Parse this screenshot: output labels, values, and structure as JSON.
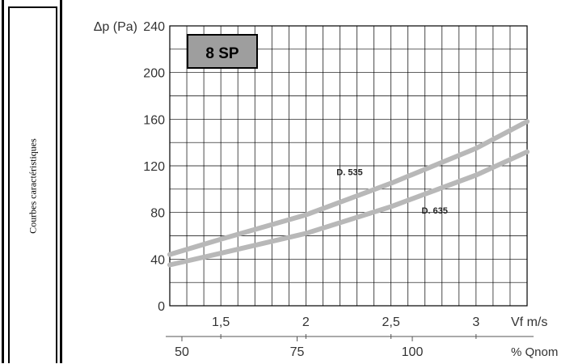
{
  "side_label": "Courbes caractéristiques",
  "chart_data": {
    "type": "line",
    "badge": "8 SP",
    "ylabel": "Δp (Pa)",
    "xlabel": "Vf m/s",
    "x2label": "% Qnom",
    "ylim": [
      0,
      240
    ],
    "xlim": [
      1.2,
      3.3
    ],
    "yticks": [
      0,
      40,
      80,
      120,
      160,
      200,
      240
    ],
    "xticks": [
      1.5,
      2,
      2.5,
      3
    ],
    "xtick_labels": [
      "1,5",
      "2",
      "2,5",
      "3"
    ],
    "x2ticks": [
      50,
      75,
      100
    ],
    "grid": true,
    "series": [
      {
        "name": "D. 535",
        "x": [
          1.2,
          1.5,
          2.0,
          2.5,
          3.0,
          3.3
        ],
        "y": [
          44,
          57,
          78,
          105,
          135,
          158
        ]
      },
      {
        "name": "D. 635",
        "x": [
          1.2,
          1.5,
          2.0,
          2.5,
          3.0,
          3.3
        ],
        "y": [
          35,
          45,
          62,
          85,
          112,
          132
        ]
      }
    ],
    "colors": {
      "curve": "#b8b8b8",
      "grid": "#000000",
      "badge_fill": "#9e9e9e"
    }
  }
}
